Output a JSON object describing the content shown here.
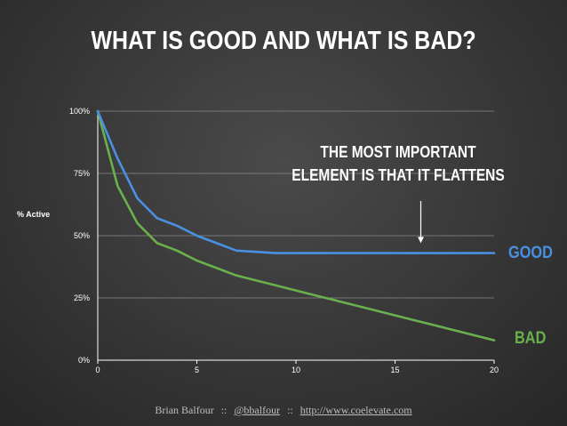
{
  "chart_data": {
    "type": "line",
    "title": "WHAT IS GOOD AND WHAT IS BAD?",
    "xlabel": "",
    "ylabel": "% Active",
    "xlim": [
      0,
      20
    ],
    "ylim": [
      0,
      100
    ],
    "x_ticks": [
      "0",
      "5",
      "10",
      "15",
      "20"
    ],
    "y_ticks": [
      "0%",
      "25%",
      "50%",
      "75%",
      "100%"
    ],
    "grid": true,
    "series": [
      {
        "name": "GOOD",
        "color": "#4a90e2",
        "x": [
          0,
          1,
          2,
          3,
          4,
          5,
          6,
          7,
          8,
          9,
          10,
          11,
          12,
          13,
          14,
          15,
          16,
          17,
          18,
          19,
          20
        ],
        "y": [
          100,
          81,
          65,
          57,
          54,
          50,
          47,
          44,
          43.5,
          43,
          43,
          43,
          43,
          43,
          43,
          43,
          43,
          43,
          43,
          43,
          43
        ]
      },
      {
        "name": "BAD",
        "color": "#6ab04c",
        "x": [
          0,
          1,
          2,
          3,
          4,
          5,
          6,
          7,
          8,
          9,
          10,
          11,
          12,
          13,
          14,
          15,
          16,
          17,
          18,
          19,
          20
        ],
        "y": [
          100,
          70,
          55,
          47,
          44,
          40,
          37,
          34,
          32,
          30,
          28,
          26,
          24,
          22,
          20,
          18,
          16,
          14,
          12,
          10,
          8
        ]
      }
    ],
    "annotation": {
      "lines": [
        "THE MOST IMPORTANT",
        "ELEMENT IS THAT IT FLATTENS"
      ],
      "arrow_target_x": 16.3,
      "arrow_target_y": 47
    }
  },
  "footer": {
    "author": "Brian Balfour",
    "separator": "::",
    "handle": "@bbalfour",
    "url": "http://www.coelevate.com"
  }
}
